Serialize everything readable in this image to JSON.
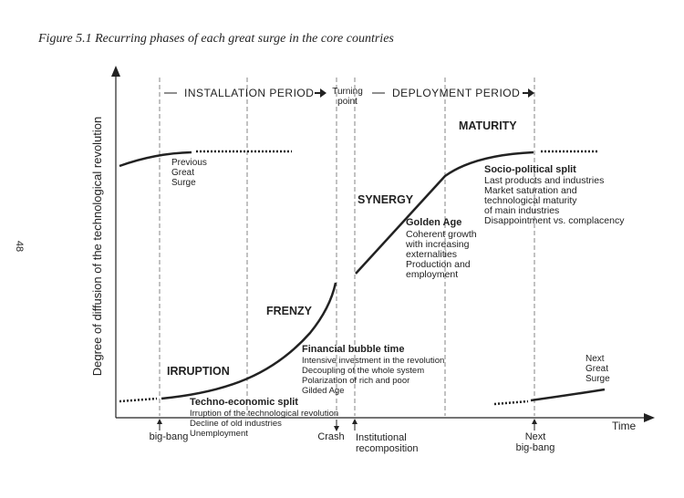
{
  "caption": "Figure 5.1    Recurring phases of each great surge in the core countries",
  "page_number": "48",
  "axes": {
    "y_label": "Degree of diffusion of the technological revolution",
    "x_label": "Time"
  },
  "periods": {
    "installation": "INSTALLATION PERIOD",
    "turning_point": [
      "Turning",
      "point"
    ],
    "deployment": "DEPLOYMENT PERIOD"
  },
  "phases": {
    "irruption": "IRRUPTION",
    "frenzy": "FRENZY",
    "synergy": "SYNERGY",
    "maturity": "MATURITY"
  },
  "surges": {
    "previous": [
      "Previous",
      "Great",
      "Surge"
    ],
    "next": [
      "Next",
      "Great",
      "Surge"
    ]
  },
  "annotations": [
    {
      "title": "Techno-economic split",
      "items": [
        "Irruption of the technological revolution",
        "Decline of old industries",
        "Unemployment"
      ]
    },
    {
      "title": "Financial bubble time",
      "items": [
        "Intensive investment in the revolution",
        "Decoupling of the whole system",
        "Polarization of rich and poor",
        "Gilded Age"
      ]
    },
    {
      "title": "Golden Age",
      "items": [
        "Coherent growth",
        "with increasing",
        "externalities",
        "Production and",
        "employment"
      ]
    },
    {
      "title": "Socio-political split",
      "items": [
        "Last products and industries",
        "Market saturation and",
        "technological maturity",
        "of main industries",
        "Disappointment vs. complacency"
      ]
    }
  ],
  "markers": {
    "big_bang": "big-bang",
    "crash": "Crash",
    "institutional": [
      "Institutional",
      "recomposition"
    ],
    "next_big_bang": [
      "Next",
      "big-bang"
    ]
  }
}
